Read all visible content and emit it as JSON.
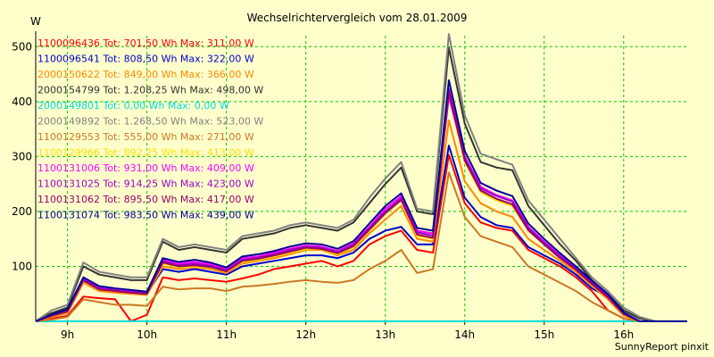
{
  "chart_data": {
    "type": "line",
    "title": "Wechselrichtervergleich vom 28.01.2009",
    "ylabel": "W",
    "xlabel": "",
    "x": [
      8.6,
      8.8,
      9.0,
      9.2,
      9.4,
      9.6,
      9.8,
      10.0,
      10.2,
      10.4,
      10.6,
      10.8,
      11.0,
      11.2,
      11.4,
      11.6,
      11.8,
      12.0,
      12.2,
      12.4,
      12.6,
      12.8,
      13.0,
      13.2,
      13.4,
      13.6,
      13.8,
      14.0,
      14.2,
      14.4,
      14.6,
      14.8,
      15.0,
      15.2,
      15.4,
      15.6,
      15.8,
      16.0,
      16.2,
      16.4,
      16.6,
      16.8
    ],
    "x_ticks": [
      9,
      10,
      11,
      12,
      13,
      14,
      15,
      16
    ],
    "x_tick_labels": [
      "9h",
      "10h",
      "11h",
      "12h",
      "13h",
      "14h",
      "15h",
      "16h"
    ],
    "ylim": [
      0,
      520
    ],
    "y_ticks": [
      100,
      200,
      300,
      400,
      500
    ],
    "y_tick_labels": [
      "100",
      "200",
      "300",
      "400",
      "500"
    ],
    "grid": true,
    "legend_position": "top-left",
    "series": [
      {
        "name": "1100096436 Tot: 701,50 Wh Max: 311,00 W",
        "color": "#ff0000",
        "values": [
          0,
          5,
          10,
          45,
          42,
          40,
          0,
          12,
          80,
          75,
          78,
          75,
          72,
          78,
          85,
          95,
          100,
          105,
          110,
          100,
          110,
          140,
          155,
          165,
          130,
          125,
          303,
          215,
          180,
          170,
          165,
          130,
          115,
          100,
          80,
          55,
          20,
          5,
          0,
          0,
          0,
          0
        ]
      },
      {
        "name": "1100096541 Tot: 808,50 Wh Max: 322,00 W",
        "color": "#0000cc",
        "values": [
          0,
          10,
          20,
          75,
          60,
          58,
          55,
          50,
          95,
          90,
          95,
          90,
          85,
          100,
          105,
          110,
          115,
          120,
          120,
          115,
          125,
          150,
          165,
          172,
          140,
          140,
          320,
          225,
          190,
          175,
          170,
          135,
          120,
          105,
          85,
          60,
          45,
          15,
          0,
          0,
          0,
          0
        ]
      },
      {
        "name": "2000150622 Tot: 849,00 Wh Max: 366,00 W",
        "color": "#ff8800",
        "values": [
          0,
          8,
          15,
          70,
          55,
          52,
          50,
          48,
          100,
          95,
          98,
          95,
          88,
          105,
          110,
          115,
          122,
          130,
          130,
          120,
          130,
          160,
          185,
          210,
          150,
          145,
          366,
          255,
          215,
          200,
          190,
          150,
          130,
          110,
          90,
          65,
          40,
          10,
          0,
          0,
          0,
          0
        ]
      },
      {
        "name": "2000154799 Tot: 1.208,25 Wh Max: 498,00 W",
        "color": "#333333",
        "values": [
          0,
          15,
          25,
          100,
          85,
          80,
          75,
          75,
          145,
          130,
          135,
          130,
          125,
          150,
          155,
          160,
          170,
          175,
          170,
          165,
          180,
          215,
          250,
          280,
          200,
          195,
          498,
          360,
          290,
          280,
          275,
          210,
          175,
          140,
          110,
          75,
          50,
          20,
          5,
          0,
          0,
          0
        ]
      },
      {
        "name": "2000149801 Tot: 0,00 Wh Max: 0,00 W",
        "color": "#00dddd",
        "values": [
          0,
          0,
          0,
          0,
          0,
          0,
          0,
          0,
          0,
          0,
          0,
          0,
          0,
          0,
          0,
          0,
          0,
          0,
          0,
          0,
          0,
          0,
          0,
          0,
          0,
          0,
          0,
          0,
          0,
          0,
          0,
          0,
          0,
          0,
          0,
          0,
          0,
          0,
          0,
          0,
          0,
          0
        ]
      },
      {
        "name": "2000149892 Tot: 1.268,50 Wh Max: 523,00 W",
        "color": "#808080",
        "values": [
          0,
          20,
          30,
          107,
          90,
          85,
          80,
          80,
          150,
          135,
          140,
          135,
          130,
          155,
          160,
          165,
          175,
          180,
          175,
          170,
          185,
          225,
          260,
          290,
          205,
          200,
          523,
          375,
          305,
          295,
          285,
          220,
          185,
          150,
          115,
          80,
          55,
          25,
          8,
          0,
          0,
          0
        ]
      },
      {
        "name": "1100129553 Tot: 555,00 Wh Max: 271,00 W",
        "color": "#cc7722",
        "values": [
          0,
          3,
          8,
          40,
          35,
          30,
          30,
          28,
          63,
          58,
          60,
          60,
          55,
          63,
          65,
          68,
          72,
          75,
          72,
          70,
          75,
          95,
          110,
          130,
          88,
          95,
          271,
          190,
          155,
          145,
          135,
          100,
          85,
          70,
          55,
          35,
          20,
          5,
          0,
          0,
          0,
          0
        ]
      },
      {
        "name": "1100129966 Tot: 892,25 Wh Max: 413,00 W",
        "color": "#ffdd00",
        "values": [
          0,
          10,
          18,
          72,
          58,
          55,
          52,
          50,
          105,
          98,
          100,
          98,
          90,
          108,
          112,
          118,
          125,
          132,
          132,
          122,
          135,
          165,
          195,
          220,
          155,
          150,
          413,
          290,
          235,
          220,
          210,
          165,
          140,
          115,
          95,
          70,
          45,
          12,
          0,
          0,
          0,
          0
        ]
      },
      {
        "name": "1100131006 Tot: 931,00 Wh Max: 409,00 W",
        "color": "#ff00ff",
        "values": [
          0,
          12,
          20,
          78,
          62,
          58,
          55,
          52,
          112,
          105,
          108,
          104,
          95,
          115,
          118,
          125,
          132,
          138,
          136,
          128,
          142,
          172,
          205,
          228,
          165,
          160,
          409,
          300,
          245,
          230,
          220,
          172,
          145,
          120,
          98,
          72,
          48,
          15,
          0,
          0,
          0,
          0
        ]
      },
      {
        "name": "1100131025 Tot: 914,25 Wh Max: 423,00 W",
        "color": "#9900cc",
        "values": [
          0,
          11,
          19,
          76,
          60,
          56,
          53,
          51,
          110,
          102,
          105,
          101,
          93,
          112,
          116,
          122,
          130,
          136,
          134,
          126,
          140,
          170,
          200,
          224,
          162,
          156,
          423,
          298,
          242,
          228,
          218,
          170,
          143,
          118,
          96,
          70,
          46,
          14,
          0,
          0,
          0,
          0
        ]
      },
      {
        "name": "1100131062 Tot: 895,50 Wh Max: 417,00 W",
        "color": "#990066",
        "values": [
          0,
          10,
          18,
          74,
          58,
          55,
          52,
          50,
          107,
          100,
          102,
          99,
          91,
          110,
          114,
          120,
          127,
          134,
          132,
          124,
          137,
          167,
          197,
          221,
          158,
          152,
          417,
          293,
          238,
          223,
          213,
          166,
          140,
          115,
          94,
          68,
          44,
          13,
          0,
          0,
          0,
          0
        ]
      },
      {
        "name": "1100131074 Tot: 983,50 Wh Max: 439,00 W",
        "color": "#000099",
        "values": [
          0,
          12,
          22,
          80,
          64,
          60,
          57,
          54,
          115,
          108,
          112,
          107,
          98,
          118,
          122,
          128,
          136,
          142,
          140,
          132,
          146,
          178,
          210,
          233,
          170,
          165,
          439,
          310,
          252,
          238,
          228,
          178,
          150,
          124,
          100,
          74,
          50,
          16,
          0,
          0,
          0,
          0
        ]
      }
    ],
    "footer": "SunnyReport pinxit"
  }
}
